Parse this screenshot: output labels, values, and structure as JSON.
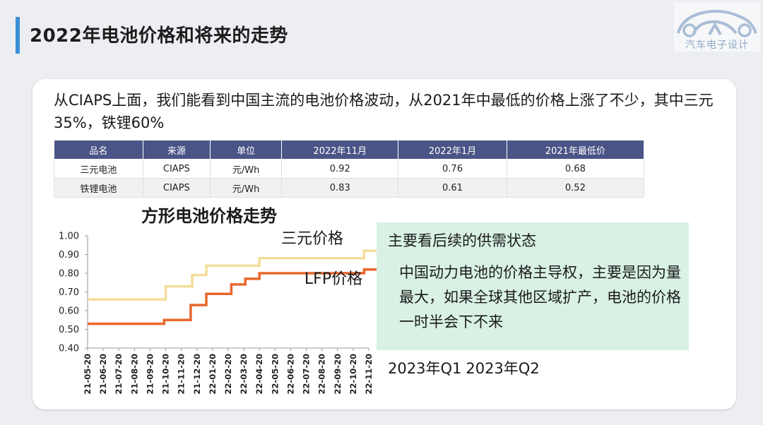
{
  "slide_title": "2022年电池价格和将来的走势",
  "logo_text": "汽车电子设计",
  "intro_text": "从CIAPS上面，我们能看到中国主流的电池价格波动，从2021年中最低的价格上涨了不少，其中三元35%，铁锂60%",
  "table": {
    "headers": [
      "品名",
      "来源",
      "单位",
      "2022年11月",
      "2022年1月",
      "2021年最低价"
    ],
    "rows": [
      [
        "三元电池",
        "CIAPS",
        "元/Wh",
        "0.92",
        "0.76",
        "0.68"
      ],
      [
        "铁锂电池",
        "CIAPS",
        "元/Wh",
        "0.83",
        "0.61",
        "0.52"
      ]
    ]
  },
  "chart_data": {
    "type": "line",
    "title": "方形电池价格走势",
    "x": [
      "21-05-20",
      "21-06-20",
      "21-07-20",
      "21-08-20",
      "21-09-20",
      "21-10-20",
      "21-11-20",
      "21-12-20",
      "22-01-20",
      "22-02-20",
      "22-03-20",
      "22-04-20",
      "22-05-20",
      "22-06-20",
      "22-07-20",
      "22-08-20",
      "22-09-20",
      "22-10-20",
      "22-11-20"
    ],
    "ylim": [
      0.4,
      1.0
    ],
    "yticks": [
      "0.40",
      "0.50",
      "0.60",
      "0.70",
      "0.80",
      "0.90",
      "1.00"
    ],
    "grid": false,
    "step": true,
    "series": [
      {
        "name": "三元价格",
        "color": "#f5dd98",
        "points": [
          [
            0,
            0.66
          ],
          [
            5.0,
            0.66
          ],
          [
            5.0,
            0.73
          ],
          [
            6.7,
            0.73
          ],
          [
            6.7,
            0.79
          ],
          [
            7.6,
            0.79
          ],
          [
            7.6,
            0.84
          ],
          [
            11.0,
            0.84
          ],
          [
            11.0,
            0.88
          ],
          [
            17.7,
            0.88
          ],
          [
            17.7,
            0.92
          ],
          [
            19,
            0.92
          ]
        ]
      },
      {
        "name": "LFP价格",
        "color": "#e8672c",
        "points": [
          [
            0,
            0.53
          ],
          [
            4.9,
            0.53
          ],
          [
            4.9,
            0.55
          ],
          [
            6.6,
            0.55
          ],
          [
            6.6,
            0.63
          ],
          [
            7.6,
            0.63
          ],
          [
            7.6,
            0.69
          ],
          [
            9.2,
            0.69
          ],
          [
            9.2,
            0.74
          ],
          [
            10.1,
            0.74
          ],
          [
            10.1,
            0.77
          ],
          [
            11.0,
            0.77
          ],
          [
            11.0,
            0.8
          ],
          [
            17.7,
            0.8
          ],
          [
            17.7,
            0.82
          ],
          [
            19,
            0.82
          ]
        ]
      }
    ]
  },
  "note": {
    "heading": "主要看后续的供需状态",
    "body": "中国动力电池的价格主导权，主要是因为量最大，如果全球其他区域扩产，电池的价格一时半会下不来"
  },
  "quarters": [
    "2023年Q1",
    "2023年Q2"
  ]
}
